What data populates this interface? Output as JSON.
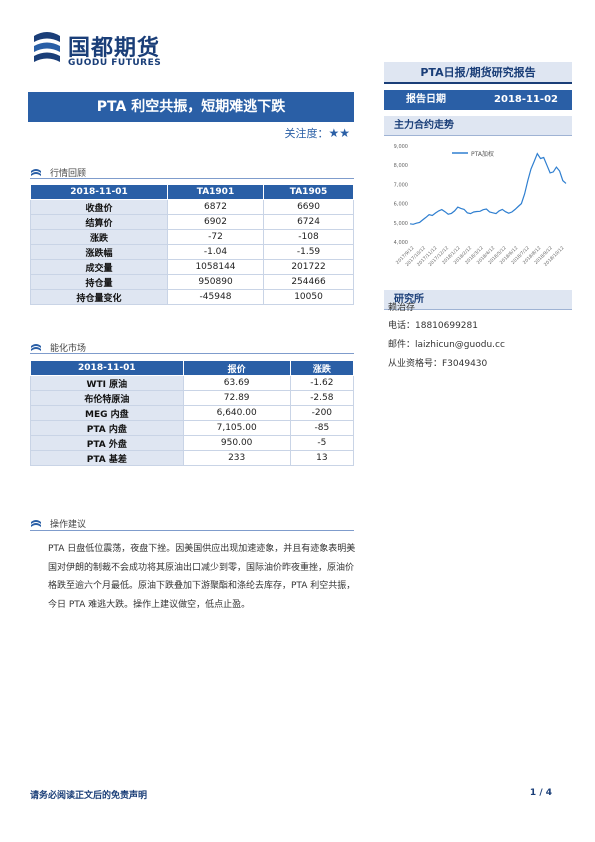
{
  "brand": {
    "cn": "国都期货",
    "en": "GUODU FUTURES"
  },
  "report_type": "PTA日报/期货研究报告",
  "title": "PTA 利空共振，短期难逃下跌",
  "attention": {
    "label": "关注度：",
    "stars": "★★"
  },
  "report_date": {
    "label": "报告日期",
    "value": "2018-11-02"
  },
  "sidebar": {
    "chart_head": "主力合约走势",
    "institute_head": "研究所",
    "analyst": "赖治存",
    "phone": "电话：18810699281",
    "email": "邮件：laizhicun@guodu.cc",
    "license": "从业资格号：F3049430"
  },
  "chart_data": {
    "type": "line",
    "title": "",
    "series": [
      {
        "name": "PTA加权",
        "values": [
          4950,
          4920,
          4980,
          5020,
          5150,
          5280,
          5420,
          5380,
          5510,
          5620,
          5690,
          5580,
          5450,
          5490,
          5620,
          5820,
          5750,
          5700,
          5520,
          5480,
          5560,
          5590,
          5600,
          5680,
          5720,
          5560,
          5520,
          5480,
          5620,
          5700,
          5580,
          5500,
          5560,
          5700,
          5850,
          6000,
          6500,
          7200,
          7800,
          8200,
          8600,
          8350,
          8400,
          8000,
          7600,
          7650,
          7900,
          7700,
          7200,
          7050
        ]
      }
    ],
    "x_tick_labels": [
      "2017/9/12",
      "2017/10/12",
      "2017/11/12",
      "2017/12/12",
      "2018/1/12",
      "2018/2/12",
      "2018/3/12",
      "2018/4/12",
      "2018/5/12",
      "2018/6/12",
      "2018/7/12",
      "2018/8/12",
      "2018/9/12",
      "2018/10/12"
    ],
    "y_tick_labels": [
      "9,000",
      "8,000",
      "7,000",
      "6,000",
      "5,000",
      "4,000"
    ],
    "ylim": [
      4000,
      9000
    ],
    "legend": "top",
    "color": "#2f7fd0"
  },
  "market_review": {
    "heading": "行情回顾",
    "headers": [
      "2018-11-01",
      "TA1901",
      "TA1905"
    ],
    "rows": [
      [
        "收盘价",
        "6872",
        "6690"
      ],
      [
        "结算价",
        "6902",
        "6724"
      ],
      [
        "涨跌",
        "-72",
        "-108"
      ],
      [
        "涨跌幅",
        "-1.04",
        "-1.59"
      ],
      [
        "成交量",
        "1058144",
        "201722"
      ],
      [
        "持仓量",
        "950890",
        "254466"
      ],
      [
        "持仓量变化",
        "-45948",
        "10050"
      ]
    ]
  },
  "energy_market": {
    "heading": "能化市场",
    "headers": [
      "2018-11-01",
      "报价",
      "涨跌"
    ],
    "rows": [
      [
        "WTI 原油",
        "63.69",
        "-1.62"
      ],
      [
        "布伦特原油",
        "72.89",
        "-2.58"
      ],
      [
        "MEG 内盘",
        "6,640.00",
        "-200"
      ],
      [
        "PTA 内盘",
        "7,105.00",
        "-85"
      ],
      [
        "PTA 外盘",
        "950.00",
        "-5"
      ],
      [
        "PTA 基差",
        "233",
        "13"
      ]
    ]
  },
  "advice": {
    "heading": "操作建议",
    "text": "PTA 日盘低位震荡，夜盘下挫。因美国供应出现加速迹象，并且有迹象表明美国对伊朗的制裁不会成功将其原油出口减少到零，国际油价昨夜重挫，原油价格跌至逾六个月最低。原油下跌叠加下游聚酯和涤纶去库存，PTA 利空共振，今日 PTA 难逃大跌。操作上建议做空，低点止盈。"
  },
  "footer": {
    "disclaimer": "请务必阅读正文后的免责声明",
    "page": "1 / 4"
  }
}
